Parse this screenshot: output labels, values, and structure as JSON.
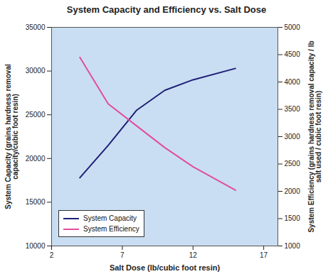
{
  "chart_data": {
    "type": "line",
    "title": "System Capacity and Efficiency vs. Salt Dose",
    "x_label": "Salt Dose (lb/cubic foot resin)",
    "y_label": "System Capacity (grains hardness removal capacity/cubic foot resin)",
    "y2_label": "System Efficiency (grains hardness removal capacity / lb salt used / cubic foot resin)",
    "x": [
      4,
      6,
      8,
      10,
      12,
      15
    ],
    "series": [
      {
        "name": "System Capacity",
        "color": "#1f1f78",
        "values": [
          17800,
          21500,
          25500,
          27800,
          29000,
          30300
        ]
      },
      {
        "name": "System Efficiency",
        "color": "#e24d9e",
        "axis": "y2",
        "values": [
          4450,
          3600,
          3200,
          2800,
          2450,
          2020
        ]
      }
    ],
    "xlim": [
      2,
      18
    ],
    "xticks": [
      2,
      7,
      12,
      17
    ],
    "ylim": [
      10000,
      35000
    ],
    "yticks": [
      10000,
      15000,
      20000,
      25000,
      30000,
      35000
    ],
    "y2lim": [
      1000,
      5000
    ],
    "y2ticks": [
      1000,
      1500,
      2000,
      2500,
      3000,
      3500,
      4000,
      4500,
      5000
    ],
    "legend": "lower left",
    "grid": false
  }
}
